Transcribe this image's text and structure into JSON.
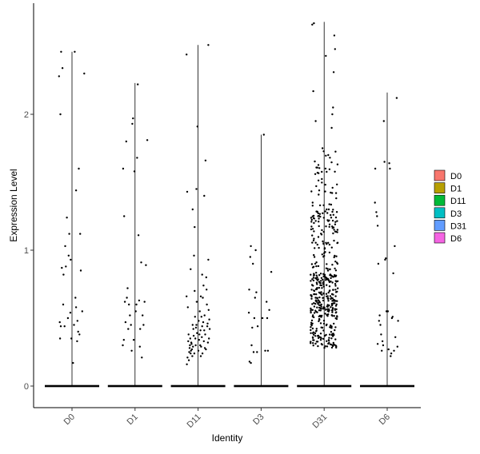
{
  "chart_data": {
    "type": "violin",
    "xlabel": "Identity",
    "ylabel": "Expression Level",
    "ylim": [
      -0.15,
      2.8
    ],
    "yticks": [
      0,
      1,
      2
    ],
    "ytick_labels": [
      "0",
      "1",
      "2"
    ],
    "categories": [
      "D0",
      "D1",
      "D11",
      "D3",
      "D31",
      "D6"
    ],
    "colors": [
      "#F8766D",
      "#B79F00",
      "#00BA38",
      "#00BFC4",
      "#619CFF",
      "#F564E3"
    ],
    "legend": {
      "entries": [
        "D0",
        "D1",
        "D11",
        "D3",
        "D31",
        "D6"
      ],
      "placement": "right"
    },
    "violin_max": [
      2.46,
      2.23,
      2.51,
      1.85,
      2.68,
      2.16
    ],
    "groups": [
      {
        "name": "D0",
        "positive_points": [
          [
            -0.38,
            2.28
          ],
          [
            -0.32,
            2.46
          ],
          [
            -0.28,
            2.34
          ],
          [
            -0.34,
            2.0
          ],
          [
            -0.25,
            0.82
          ],
          [
            -0.3,
            0.87
          ],
          [
            -0.36,
            0.47
          ],
          [
            -0.33,
            0.44
          ],
          [
            -0.26,
            0.6
          ],
          [
            -0.22,
            0.44
          ],
          [
            -0.2,
            1.03
          ],
          [
            -0.18,
            0.88
          ],
          [
            -0.15,
            1.24
          ],
          [
            -0.12,
            0.5
          ],
          [
            -0.1,
            0.96
          ],
          [
            -0.08,
            1.12
          ],
          [
            -0.05,
            0.54
          ],
          [
            -0.02,
            0.35
          ],
          [
            0.03,
            0.17
          ],
          [
            0.06,
            0.45
          ],
          [
            0.1,
            0.65
          ],
          [
            0.12,
            0.58
          ],
          [
            0.16,
            0.48
          ],
          [
            0.18,
            0.4
          ],
          [
            0.2,
            1.6
          ],
          [
            0.22,
            0.38
          ],
          [
            0.24,
            1.12
          ],
          [
            0.26,
            0.85
          ],
          [
            0.3,
            0.55
          ],
          [
            0.36,
            2.3
          ],
          [
            0.12,
            1.44
          ],
          [
            -0.04,
            0.93
          ],
          [
            0.08,
            2.46
          ],
          [
            -0.35,
            0.35
          ],
          [
            0.15,
            0.33
          ]
        ]
      },
      {
        "name": "D1",
        "positive_points": [
          [
            -0.35,
            1.6
          ],
          [
            -0.32,
            1.25
          ],
          [
            -0.3,
            0.62
          ],
          [
            -0.33,
            0.34
          ],
          [
            -0.28,
            0.47
          ],
          [
            -0.24,
            0.65
          ],
          [
            -0.22,
            0.72
          ],
          [
            -0.2,
            0.42
          ],
          [
            -0.18,
            0.6
          ],
          [
            -0.15,
            0.52
          ],
          [
            -0.12,
            0.45
          ],
          [
            -0.08,
            1.93
          ],
          [
            -0.06,
            1.97
          ],
          [
            -0.04,
            0.34
          ],
          [
            -0.02,
            1.58
          ],
          [
            0.04,
            0.6
          ],
          [
            0.06,
            1.68
          ],
          [
            0.08,
            2.22
          ],
          [
            0.1,
            1.11
          ],
          [
            0.12,
            0.63
          ],
          [
            0.15,
            0.42
          ],
          [
            0.18,
            0.91
          ],
          [
            0.2,
            0.21
          ],
          [
            0.22,
            0.52
          ],
          [
            0.28,
            0.62
          ],
          [
            0.32,
            0.89
          ],
          [
            0.36,
            1.81
          ],
          [
            -0.26,
            1.8
          ],
          [
            0.02,
            0.55
          ],
          [
            -0.1,
            0.26
          ],
          [
            0.25,
            0.45
          ],
          [
            -0.36,
            0.3
          ],
          [
            0.14,
            0.29
          ]
        ]
      },
      {
        "name": "D11",
        "positive_points": [
          [
            -0.34,
            2.44
          ],
          [
            -0.32,
            1.43
          ],
          [
            -0.3,
            0.58
          ],
          [
            -0.28,
            0.38
          ],
          [
            -0.26,
            0.25
          ],
          [
            -0.24,
            0.3
          ],
          [
            -0.22,
            0.24
          ],
          [
            -0.2,
            0.32
          ],
          [
            -0.18,
            0.27
          ],
          [
            -0.16,
            0.45
          ],
          [
            -0.14,
            0.42
          ],
          [
            -0.12,
            0.96
          ],
          [
            -0.1,
            0.7
          ],
          [
            -0.08,
            0.35
          ],
          [
            -0.06,
            0.43
          ],
          [
            -0.04,
            0.62
          ],
          [
            -0.02,
            1.91
          ],
          [
            0.02,
            0.48
          ],
          [
            0.04,
            0.38
          ],
          [
            0.06,
            0.3
          ],
          [
            0.08,
            0.22
          ],
          [
            0.1,
            0.51
          ],
          [
            0.12,
            0.44
          ],
          [
            0.14,
            0.65
          ],
          [
            0.16,
            0.74
          ],
          [
            0.18,
            0.41
          ],
          [
            0.2,
            0.28
          ],
          [
            0.22,
            1.66
          ],
          [
            0.24,
            0.8
          ],
          [
            0.26,
            0.6
          ],
          [
            0.28,
            0.46
          ],
          [
            0.3,
            0.93
          ],
          [
            0.32,
            0.35
          ],
          [
            0.34,
            0.42
          ],
          [
            -0.33,
            0.16
          ],
          [
            -0.31,
            0.21
          ],
          [
            -0.29,
            0.33
          ],
          [
            -0.27,
            0.19
          ],
          [
            -0.25,
            0.28
          ],
          [
            -0.23,
            0.35
          ],
          [
            -0.21,
            0.26
          ],
          [
            -0.19,
            0.31
          ],
          [
            -0.17,
            0.22
          ],
          [
            -0.15,
            0.29
          ],
          [
            -0.13,
            0.37
          ],
          [
            -0.11,
            0.24
          ],
          [
            -0.09,
            0.51
          ],
          [
            -0.07,
            0.3
          ],
          [
            -0.05,
            0.45
          ],
          [
            -0.03,
            0.39
          ],
          [
            0.01,
            0.26
          ],
          [
            0.03,
            0.34
          ],
          [
            0.05,
            0.55
          ],
          [
            0.07,
            0.41
          ],
          [
            0.09,
            0.29
          ],
          [
            0.11,
            0.36
          ],
          [
            0.13,
            0.24
          ],
          [
            0.15,
            0.47
          ],
          [
            0.17,
            0.33
          ],
          [
            0.19,
            0.52
          ],
          [
            0.21,
            0.38
          ],
          [
            0.23,
            0.27
          ],
          [
            0.25,
            0.71
          ],
          [
            0.27,
            0.44
          ],
          [
            0.29,
            0.32
          ],
          [
            0.31,
            0.56
          ],
          [
            0.33,
            0.49
          ],
          [
            -0.16,
            1.3
          ],
          [
            0.18,
            1.4
          ],
          [
            0.3,
            2.51
          ],
          [
            -0.05,
            1.45
          ],
          [
            0.08,
            0.66
          ],
          [
            -0.1,
            1.17
          ],
          [
            0.12,
            0.82
          ],
          [
            -0.34,
            0.66
          ],
          [
            -0.22,
            0.86
          ]
        ]
      },
      {
        "name": "D3",
        "positive_points": [
          [
            -0.36,
            0.54
          ],
          [
            -0.35,
            0.71
          ],
          [
            -0.34,
            0.18
          ],
          [
            -0.32,
            0.95
          ],
          [
            -0.3,
            1.03
          ],
          [
            -0.28,
            0.3
          ],
          [
            -0.26,
            0.43
          ],
          [
            -0.24,
            0.9
          ],
          [
            -0.22,
            0.25
          ],
          [
            -0.2,
            0.5
          ],
          [
            -0.18,
            0.65
          ],
          [
            -0.16,
            1.0
          ],
          [
            -0.14,
            0.69
          ],
          [
            -0.1,
            0.44
          ],
          [
            0.04,
            0.5
          ],
          [
            0.08,
            1.85
          ],
          [
            0.12,
            0.26
          ],
          [
            0.16,
            0.62
          ],
          [
            0.2,
            0.26
          ],
          [
            0.24,
            0.56
          ],
          [
            0.3,
            0.84
          ],
          [
            -0.3,
            0.17
          ],
          [
            -0.12,
            0.25
          ],
          [
            0.18,
            0.5
          ]
        ]
      }
    ]
  }
}
